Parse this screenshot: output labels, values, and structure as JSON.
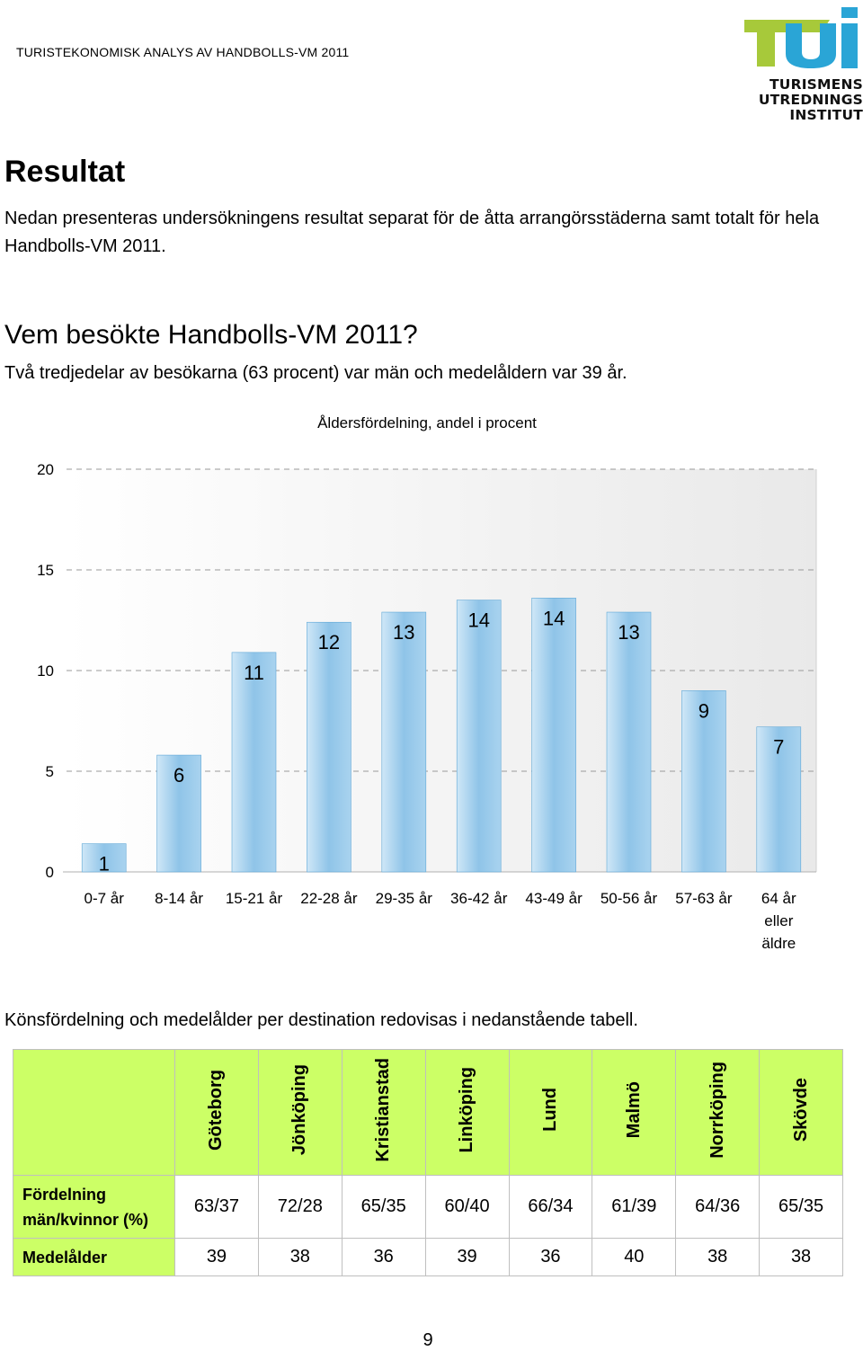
{
  "header": {
    "title": "TURISTEKONOMISK ANALYS AV HANDBOLLS-VM 2011",
    "logo_lines": [
      "TURISMENS",
      "UTREDNINGS",
      "INSTITUT"
    ]
  },
  "section": {
    "title": "Resultat",
    "intro": "Nedan presenteras undersökningens resultat separat för de åtta arrangörsstäderna samt totalt för hela Handbolls-VM 2011."
  },
  "subsection": {
    "title": "Vem besökte Handbolls-VM 2011?",
    "intro": "Två tredjedelar av besökarna (63 procent) var män och medelåldern var 39 år."
  },
  "chart_data": {
    "type": "bar",
    "title": "Åldersfördelning, andel i procent",
    "xlabel": "",
    "ylabel": "",
    "categories": [
      "0-7 år",
      "8-14 år",
      "15-21 år",
      "22-28 år",
      "29-35 år",
      "36-42 år",
      "43-49 år",
      "50-56 år",
      "57-63 år",
      "64 år eller äldre"
    ],
    "values": [
      1.4,
      5.8,
      10.9,
      12.4,
      12.9,
      13.5,
      13.6,
      12.9,
      9,
      7.2
    ],
    "data_labels": [
      "1",
      "6",
      "11",
      "12",
      "13",
      "14",
      "14",
      "13",
      "9",
      "7"
    ],
    "ylim": [
      0,
      20
    ],
    "yticks": [
      0,
      5,
      10,
      15,
      20
    ],
    "grid": true,
    "legend": "none",
    "colors": {
      "bar": "#8fc4e8",
      "bar_light": "#cfe7f7",
      "bar_edge": "#5fa7d6",
      "grid": "#9a9a9a",
      "plot_bg": "#f2f2f2"
    }
  },
  "table": {
    "intro": "Könsfördelning och medelålder per destination redovisas i nedanstående tabell.",
    "columns": [
      "Göteborg",
      "Jönköping",
      "Kristianstad",
      "Linköping",
      "Lund",
      "Malmö",
      "Norrköping",
      "Skövde"
    ],
    "rows": [
      {
        "label": "Fördelning män/kvinnor (%)",
        "values": [
          "63/37",
          "72/28",
          "65/35",
          "60/40",
          "66/34",
          "61/39",
          "64/36",
          "65/35"
        ]
      },
      {
        "label": "Medelålder",
        "values": [
          "39",
          "38",
          "36",
          "39",
          "36",
          "40",
          "38",
          "38"
        ]
      }
    ],
    "colors": {
      "header_bg": "#ccff66",
      "border": "#bfbfbf"
    }
  },
  "page_number": "9"
}
